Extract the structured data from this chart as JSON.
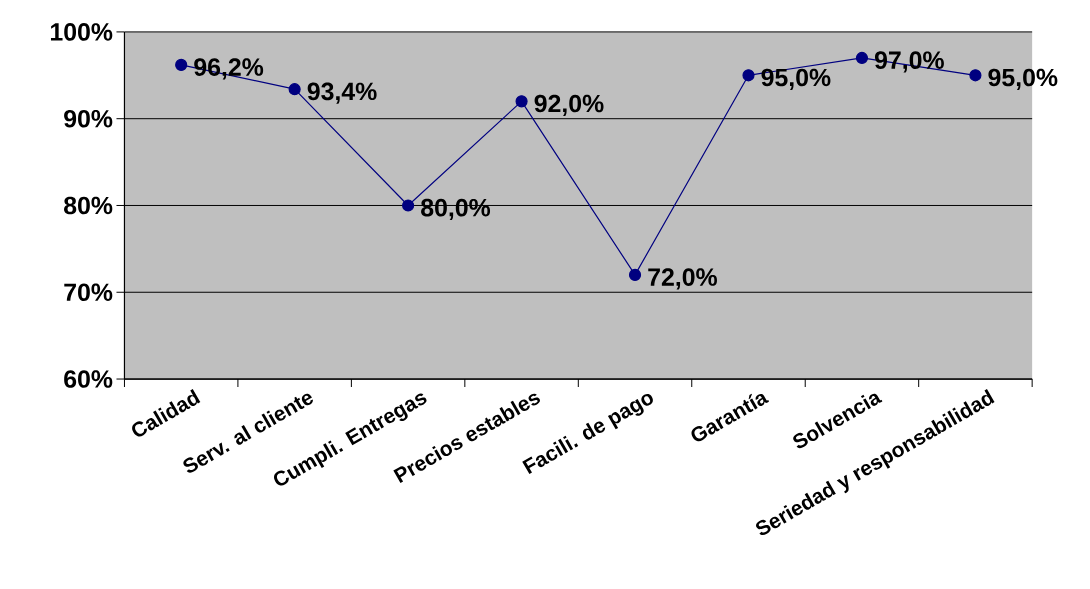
{
  "chart_data": {
    "type": "line",
    "categories": [
      "Calidad",
      "Serv. al cliente",
      "Cumpli. Entregas",
      "Precios estables",
      "Facili. de pago",
      "Garantía",
      "Solvencia",
      "Seriedad y responsabilidad"
    ],
    "series": [
      {
        "color": "#000080",
        "values": [
          96.2,
          93.4,
          80.0,
          92.0,
          72.0,
          95.0,
          97.0,
          95.0
        ],
        "value_labels": [
          "96,2%",
          "93,4%",
          "80,0%",
          "92,0%",
          "72,0%",
          "95,0%",
          "97,0%",
          "95,0%"
        ]
      }
    ],
    "ylim": [
      60,
      100
    ],
    "yticks": [
      {
        "value": 60,
        "label": "60%"
      },
      {
        "value": 70,
        "label": "70%"
      },
      {
        "value": 80,
        "label": "80%"
      },
      {
        "value": 90,
        "label": "90%"
      },
      {
        "value": 100,
        "label": "100%"
      }
    ],
    "grid": "y",
    "marker": "circle",
    "line_style": "solid"
  }
}
